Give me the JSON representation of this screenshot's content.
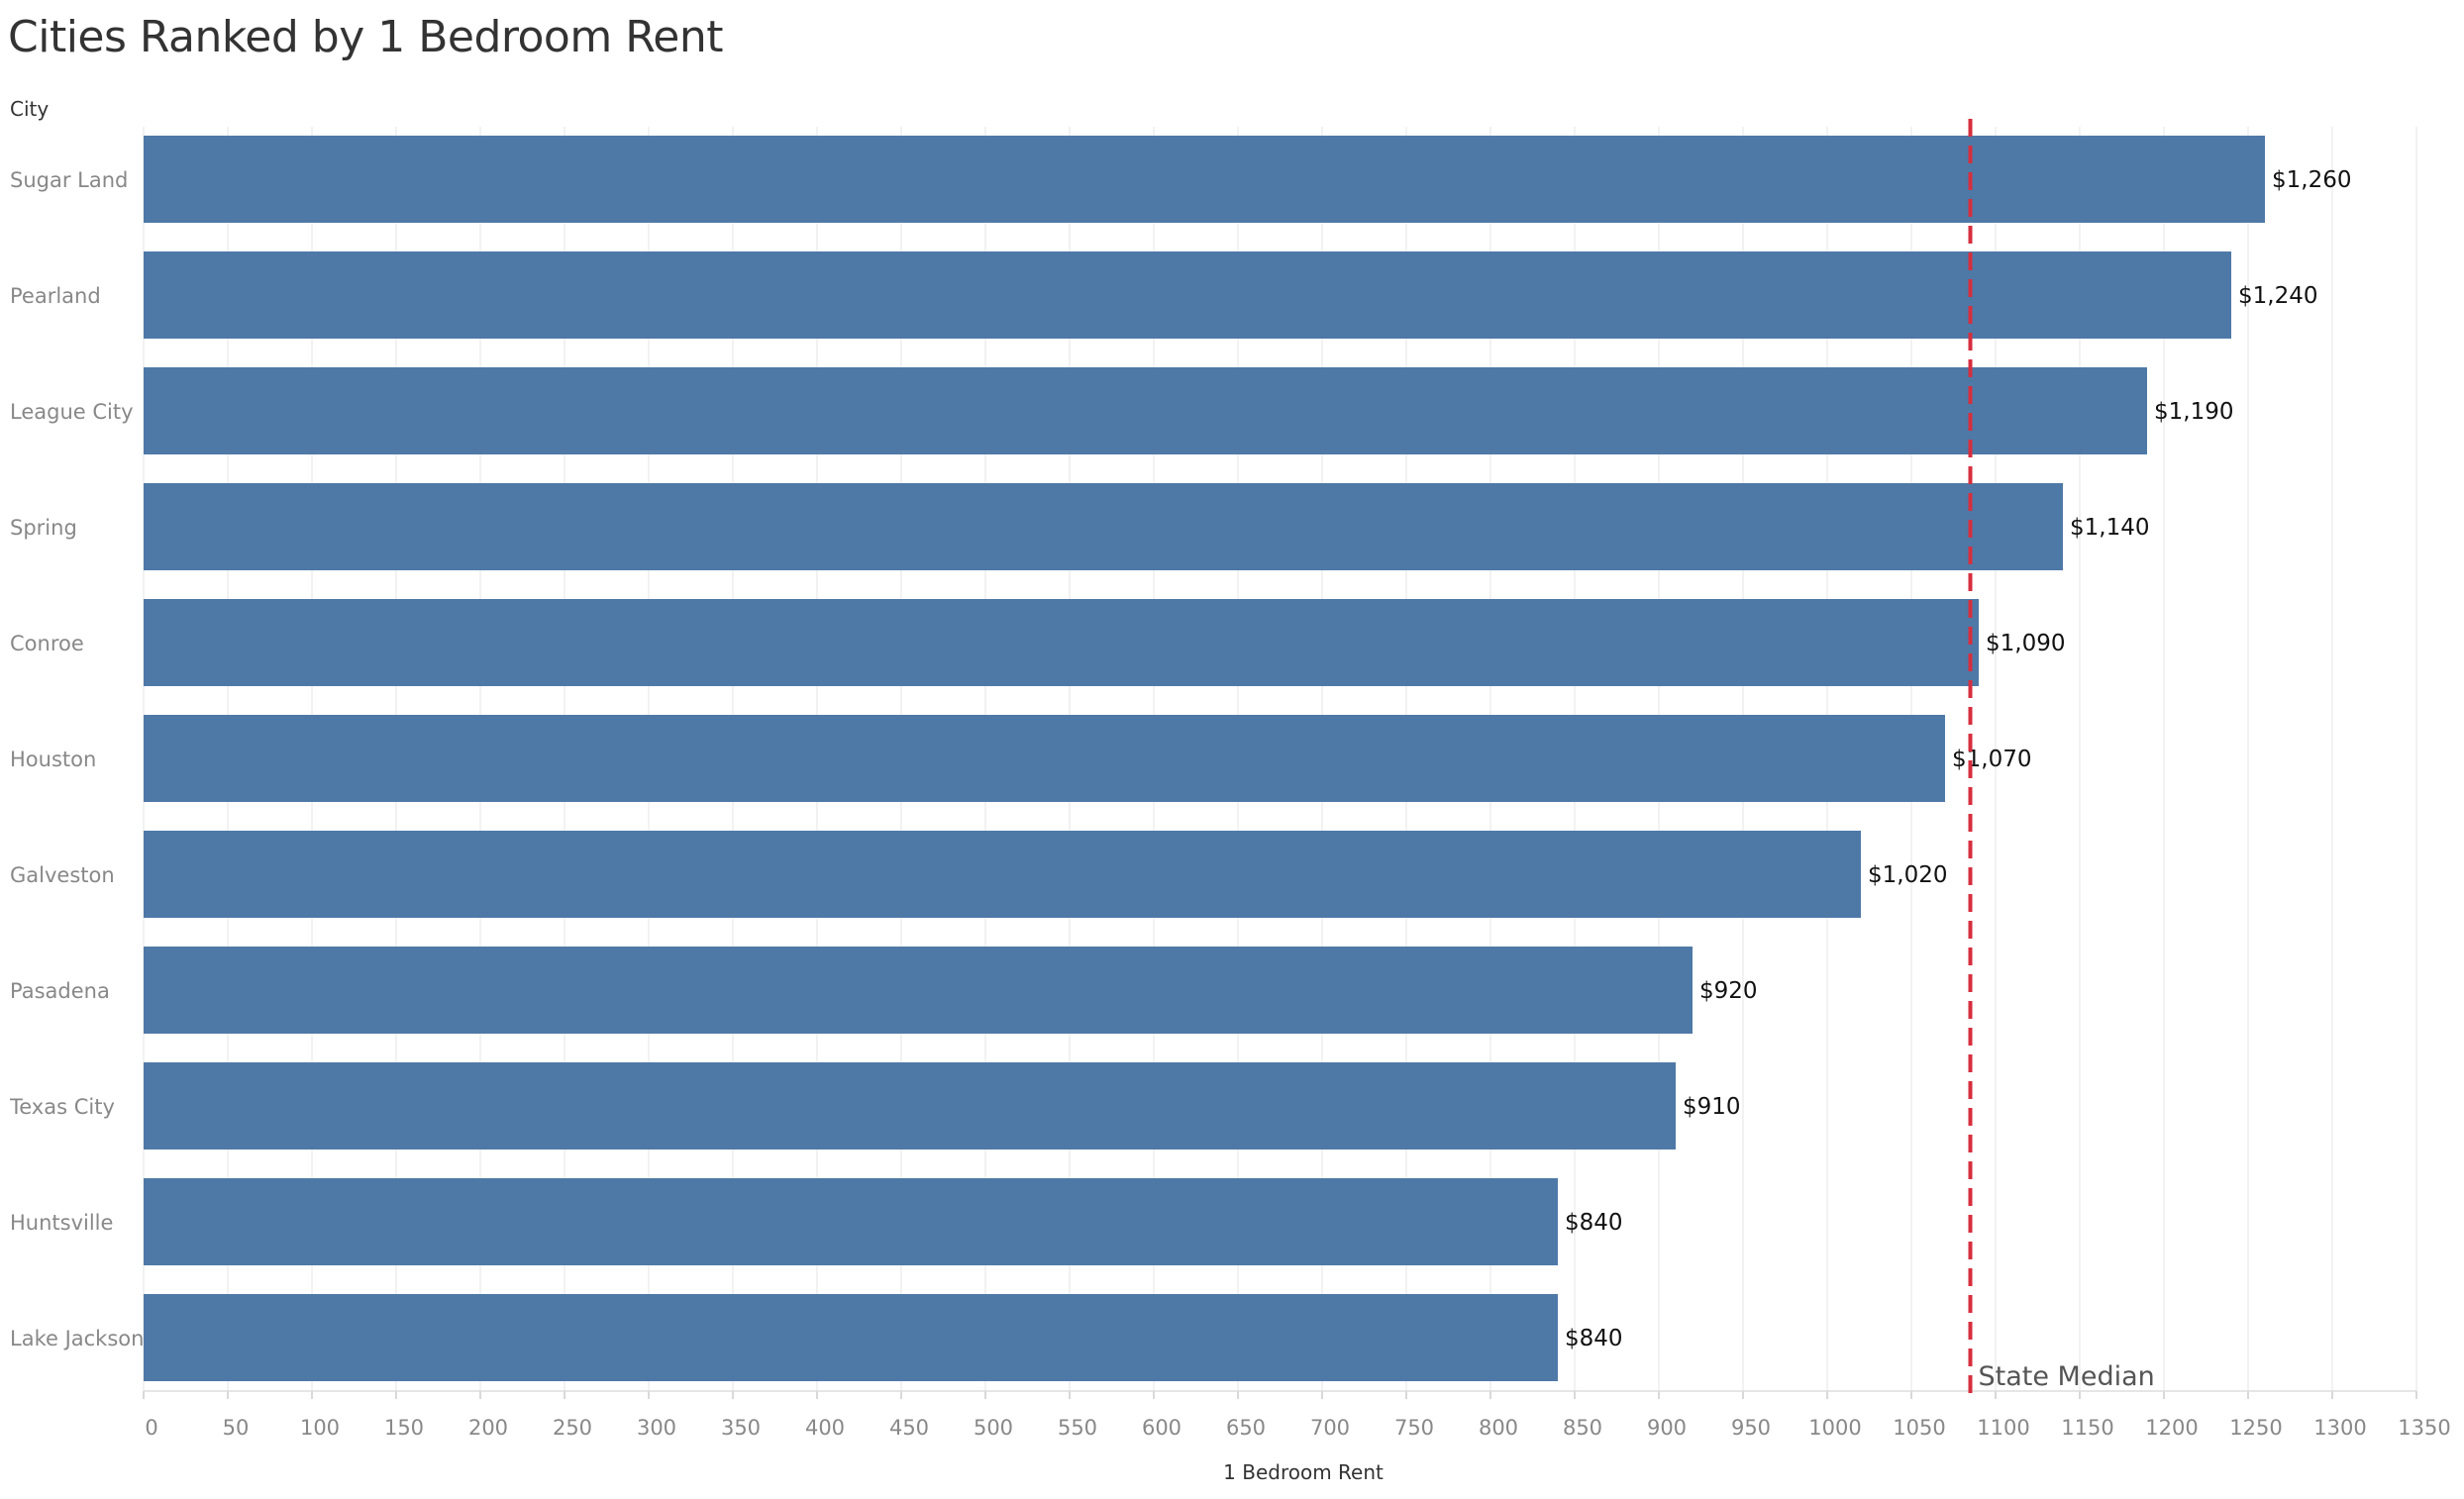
{
  "chart_data": {
    "type": "bar",
    "orientation": "horizontal",
    "title": "Cities Ranked by 1 Bedroom Rent",
    "dimension_header": "City",
    "xlabel": "1 Bedroom Rent",
    "categories": [
      "Sugar Land",
      "Pearland",
      "League City",
      "Spring",
      "Conroe",
      "Houston",
      "Galveston",
      "Pasadena",
      "Texas City",
      "Huntsville",
      "Lake Jackson"
    ],
    "values": [
      1260,
      1240,
      1190,
      1140,
      1090,
      1070,
      1020,
      920,
      910,
      840,
      840
    ],
    "value_labels": [
      "$1,260",
      "$1,240",
      "$1,190",
      "$1,140",
      "$1,090",
      "$1,070",
      "$1,020",
      "$920",
      "$910",
      "$840",
      "$840"
    ],
    "xlim": [
      0,
      1350
    ],
    "xticks": [
      0,
      50,
      100,
      150,
      200,
      250,
      300,
      350,
      400,
      450,
      500,
      550,
      600,
      650,
      700,
      750,
      800,
      850,
      900,
      950,
      1000,
      1050,
      1100,
      1150,
      1200,
      1250,
      1300,
      1350
    ],
    "reference_line": {
      "label": "State Median",
      "value": 1085,
      "color": "#d62e3e",
      "style": "dashed"
    },
    "bar_color": "#4e79a7",
    "grid": "vertical"
  }
}
